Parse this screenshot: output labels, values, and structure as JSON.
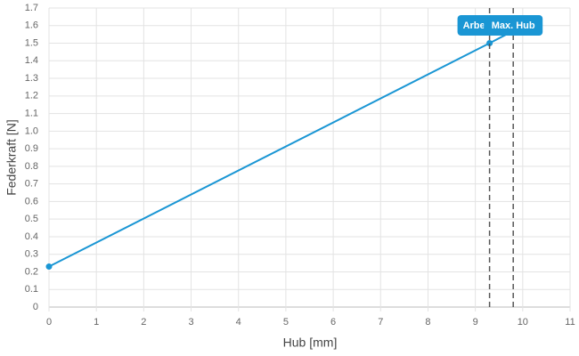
{
  "chart_data": {
    "type": "line",
    "x_label": "Hub [mm]",
    "y_label": "Federkraft [N]",
    "series": [
      {
        "color": "#1a96d4",
        "x": [
          0,
          9.3,
          9.8
        ],
        "values": [
          0.23,
          1.5,
          1.57
        ]
      }
    ],
    "annotations": [
      {
        "x": 9.3,
        "label": "Arbe"
      },
      {
        "x": 9.8,
        "label": "Max. Hub"
      }
    ],
    "xlim": [
      0,
      11
    ],
    "xticks": [
      0,
      1,
      2,
      3,
      4,
      5,
      6,
      7,
      8,
      9,
      10,
      11
    ],
    "ylim": [
      0,
      1.7
    ],
    "yticks": [
      0,
      0.1,
      0.2,
      0.3,
      0.4,
      0.5,
      0.6,
      0.7,
      0.8,
      0.9,
      {
        "value": 1,
        "label": "1.0"
      },
      1.1,
      1.2,
      1.3,
      1.4,
      1.5,
      1.6,
      1.7
    ],
    "grid": true
  }
}
